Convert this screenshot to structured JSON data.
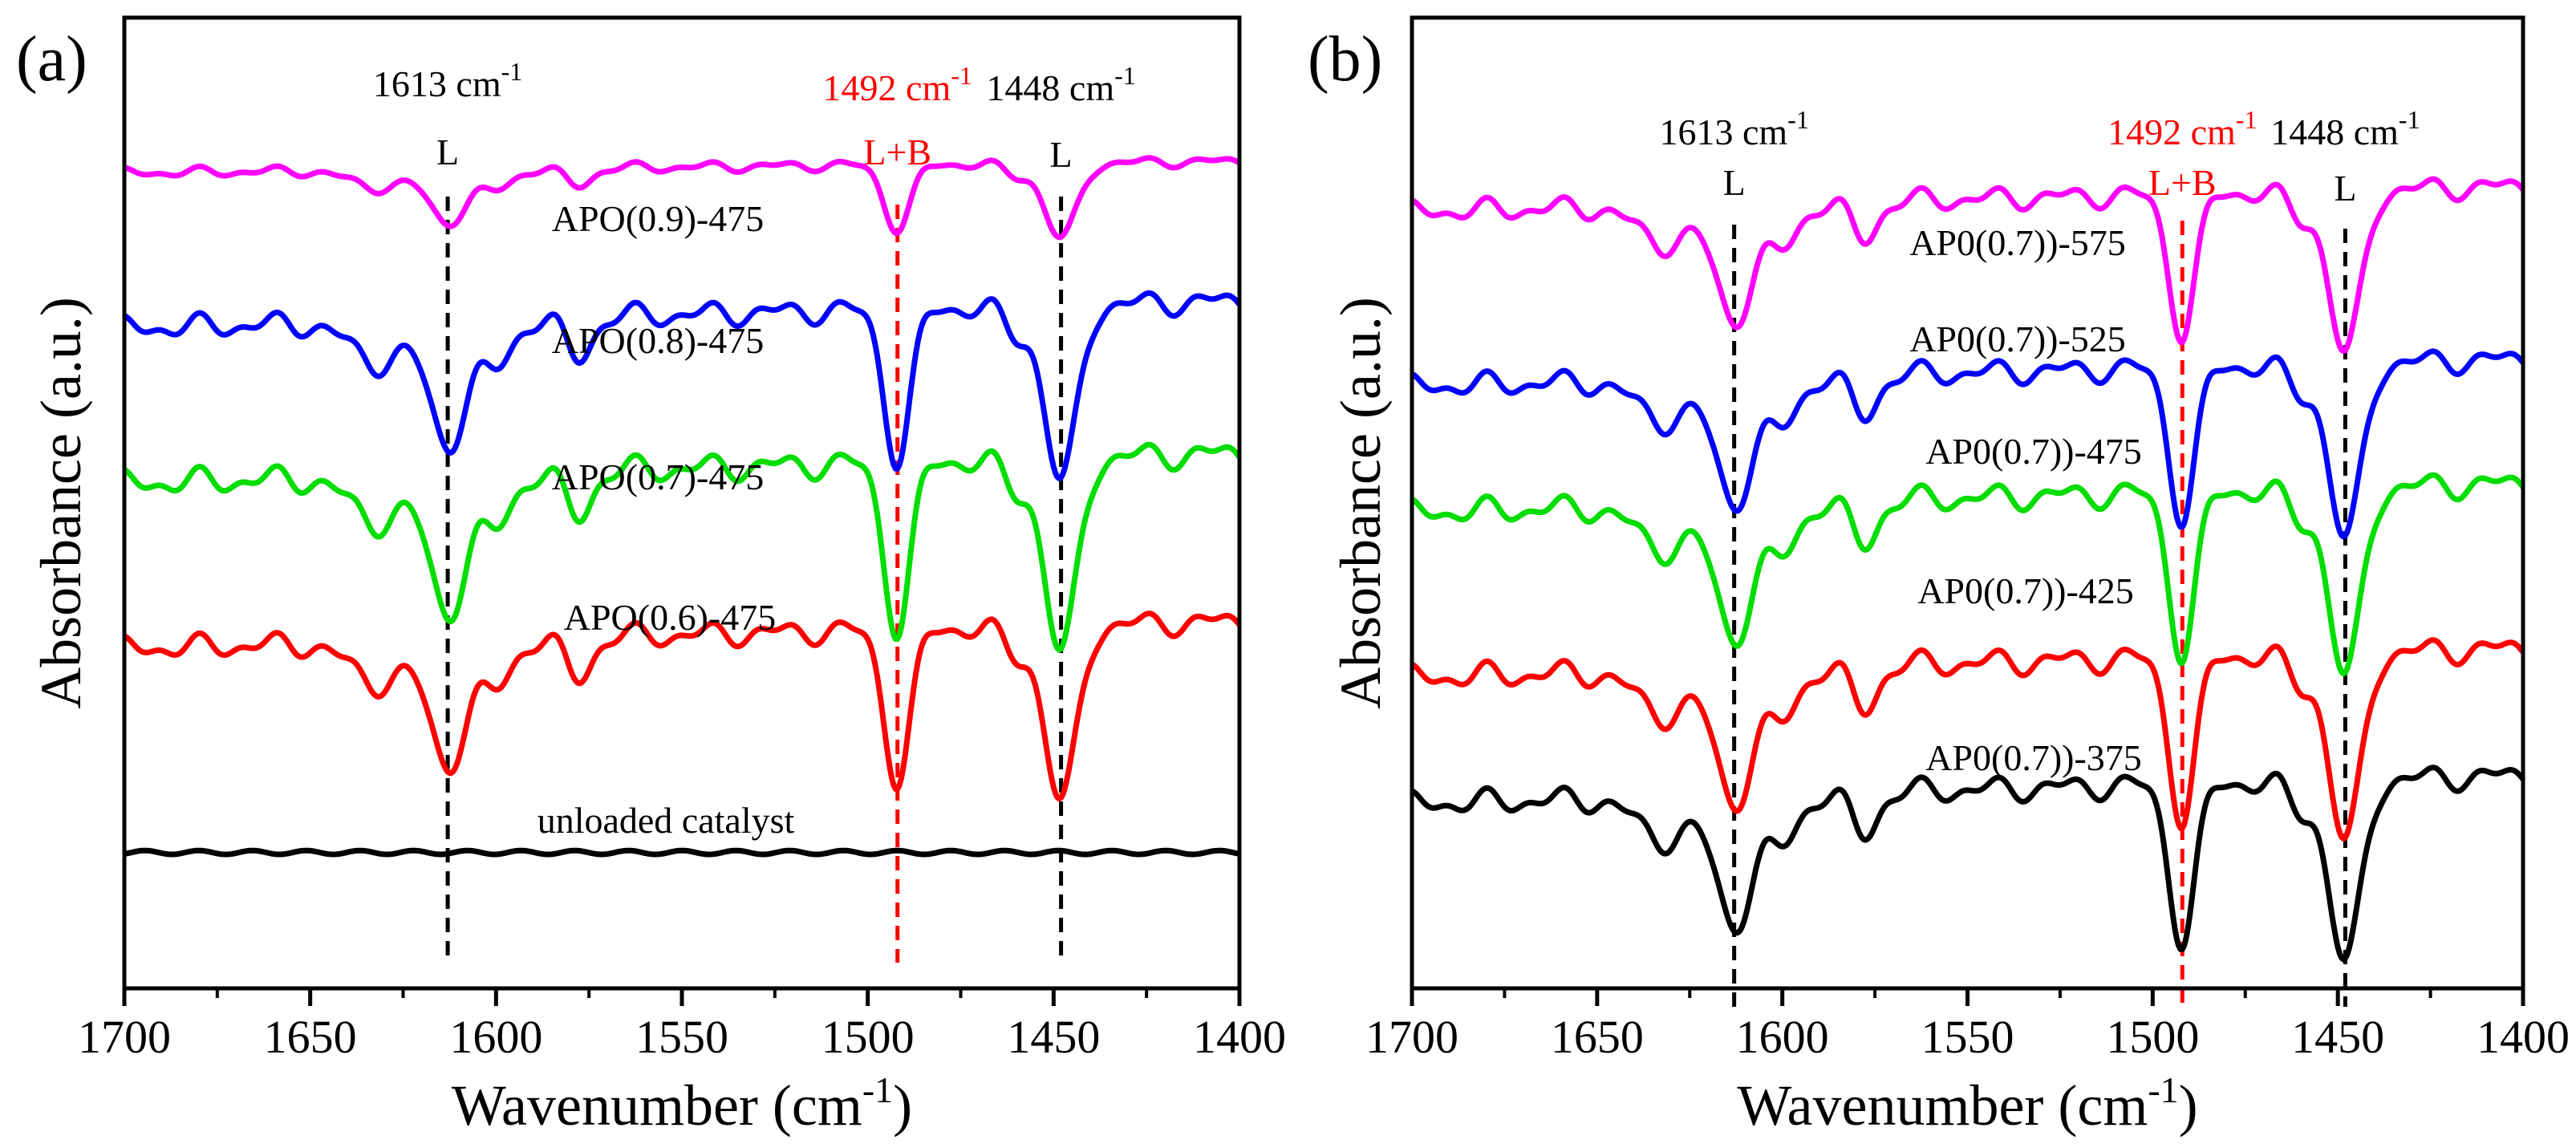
{
  "chart_data": [
    {
      "type": "line",
      "panel_label": "(a)",
      "xlabel": "Wavenumber (cm",
      "xlabel_sup": "-1",
      "xlabel_close": ")",
      "ylabel": "Absorbance (a.u.)",
      "xlim": [
        1700,
        1400
      ],
      "x_reversed": true,
      "xticks": [
        "1700",
        "1650",
        "1600",
        "1550",
        "1500",
        "1450",
        "1400"
      ],
      "y_units": "a.u. (offset, no scale)",
      "references": [
        {
          "wavenumber": 1613,
          "label": "1613 cm",
          "sup": "-1",
          "site": "L",
          "color": "#000000"
        },
        {
          "wavenumber": 1492,
          "label": "1492 cm",
          "sup": "-1",
          "site": "L+B",
          "color": "#ff0000"
        },
        {
          "wavenumber": 1448,
          "label": "1448 cm",
          "sup": "-1",
          "site": "L",
          "color": "#000000"
        }
      ],
      "series": [
        {
          "name": "APO(0.9)-475",
          "color": "#ff00ff",
          "baseline": 0.84,
          "scale": 0.6
        },
        {
          "name": "APO(0.8)-475",
          "color": "#0000ff",
          "baseline": 0.68,
          "scale": 1.4
        },
        {
          "name": "APO(0.7)-475",
          "color": "#00dd00",
          "baseline": 0.52,
          "scale": 1.55
        },
        {
          "name": "APO(0.6)-475",
          "color": "#ff0000",
          "baseline": 0.35,
          "scale": 1.4
        },
        {
          "name": "unloaded catalyst",
          "color": "#000000",
          "baseline": 0.14,
          "scale": 0
        }
      ]
    },
    {
      "type": "line",
      "panel_label": "(b)",
      "xlabel": "Wavenumber (cm",
      "xlabel_sup": "-1",
      "xlabel_close": ")",
      "ylabel": "Absorbance (a.u.)",
      "xlim": [
        1700,
        1400
      ],
      "x_reversed": true,
      "xticks": [
        "1700",
        "1650",
        "1600",
        "1550",
        "1500",
        "1450",
        "1400"
      ],
      "y_units": "a.u. (offset, no scale)",
      "references": [
        {
          "wavenumber": 1613,
          "label": "1613 cm",
          "sup": "-1",
          "site": "L",
          "color": "#000000"
        },
        {
          "wavenumber": 1492,
          "label": "1492 cm",
          "sup": "-1",
          "site": "L+B",
          "color": "#ff0000"
        },
        {
          "wavenumber": 1448,
          "label": "1448 cm",
          "sup": "-1",
          "site": "L",
          "color": "#000000"
        }
      ],
      "series": [
        {
          "name": "AP0(0.7))-575",
          "color": "#ff00ff",
          "baseline": 0.8,
          "scale": 1.3
        },
        {
          "name": "AP0(0.7))-525",
          "color": "#0000ff",
          "baseline": 0.62,
          "scale": 1.4
        },
        {
          "name": "AP0(0.7))-475",
          "color": "#00dd00",
          "baseline": 0.49,
          "scale": 1.5
        },
        {
          "name": "AP0(0.7))-425",
          "color": "#ff0000",
          "baseline": 0.32,
          "scale": 1.5
        },
        {
          "name": "AP0(0.7))-375",
          "color": "#000000",
          "baseline": 0.19,
          "scale": 1.45
        }
      ]
    }
  ]
}
